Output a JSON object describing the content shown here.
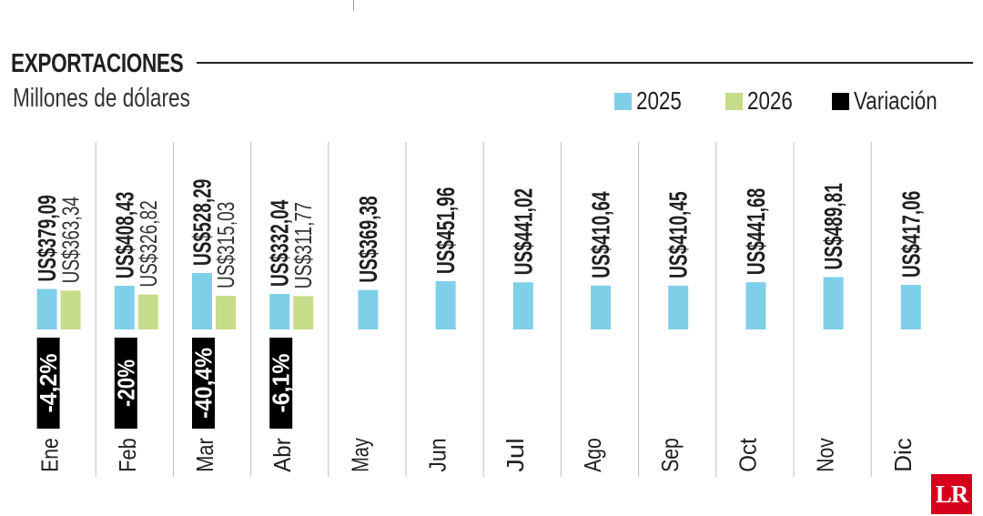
{
  "title": "EXPORTACIONES",
  "subtitle": "Millones de dólares",
  "legend": [
    {
      "label": "2025",
      "color": "#7fcfe9"
    },
    {
      "label": "2026",
      "color": "#c6dc8a"
    },
    {
      "label": "Variación",
      "color": "#000000"
    }
  ],
  "logo_text": "LR",
  "colors": {
    "series_2025": "#7fcfe9",
    "series_2026": "#c6dc8a",
    "variation_box": "#000000",
    "divider": "#bfbfbf",
    "logo_bg": "#d6001c"
  },
  "chart_data": {
    "type": "bar",
    "title": "EXPORTACIONES",
    "subtitle": "Millones de dólares",
    "xlabel": "",
    "ylabel": "",
    "categories": [
      "Ene",
      "Feb",
      "Mar",
      "Abr",
      "May",
      "Jun",
      "Jul",
      "Ago",
      "Sep",
      "Oct",
      "Nov",
      "Dic"
    ],
    "series": [
      {
        "name": "2025",
        "values": [
          379.09,
          408.43,
          528.29,
          332.04,
          369.38,
          451.96,
          441.02,
          410.64,
          410.45,
          441.68,
          489.81,
          417.06
        ],
        "labels": [
          "US$379,09",
          "US$408,43",
          "US$528,29",
          "US$332,04",
          "US$369,38",
          "US$451,96",
          "US$441,02",
          "US$410,64",
          "US$410,45",
          "US$441,68",
          "US$489,81",
          "US$417,06"
        ]
      },
      {
        "name": "2026",
        "values": [
          363.34,
          326.82,
          315.03,
          311.77,
          null,
          null,
          null,
          null,
          null,
          null,
          null,
          null
        ],
        "labels": [
          "US$363,34",
          "US$326,82",
          "US$315,03",
          "US$311,77",
          null,
          null,
          null,
          null,
          null,
          null,
          null,
          null
        ]
      },
      {
        "name": "Variación",
        "values": [
          -4.2,
          -20,
          -40.4,
          -6.1,
          null,
          null,
          null,
          null,
          null,
          null,
          null,
          null
        ],
        "labels": [
          "-4,2%",
          "-20%",
          "-40,4%",
          "-6,1%",
          null,
          null,
          null,
          null,
          null,
          null,
          null,
          null
        ]
      }
    ],
    "grid": false,
    "legend_position": "top-right"
  }
}
